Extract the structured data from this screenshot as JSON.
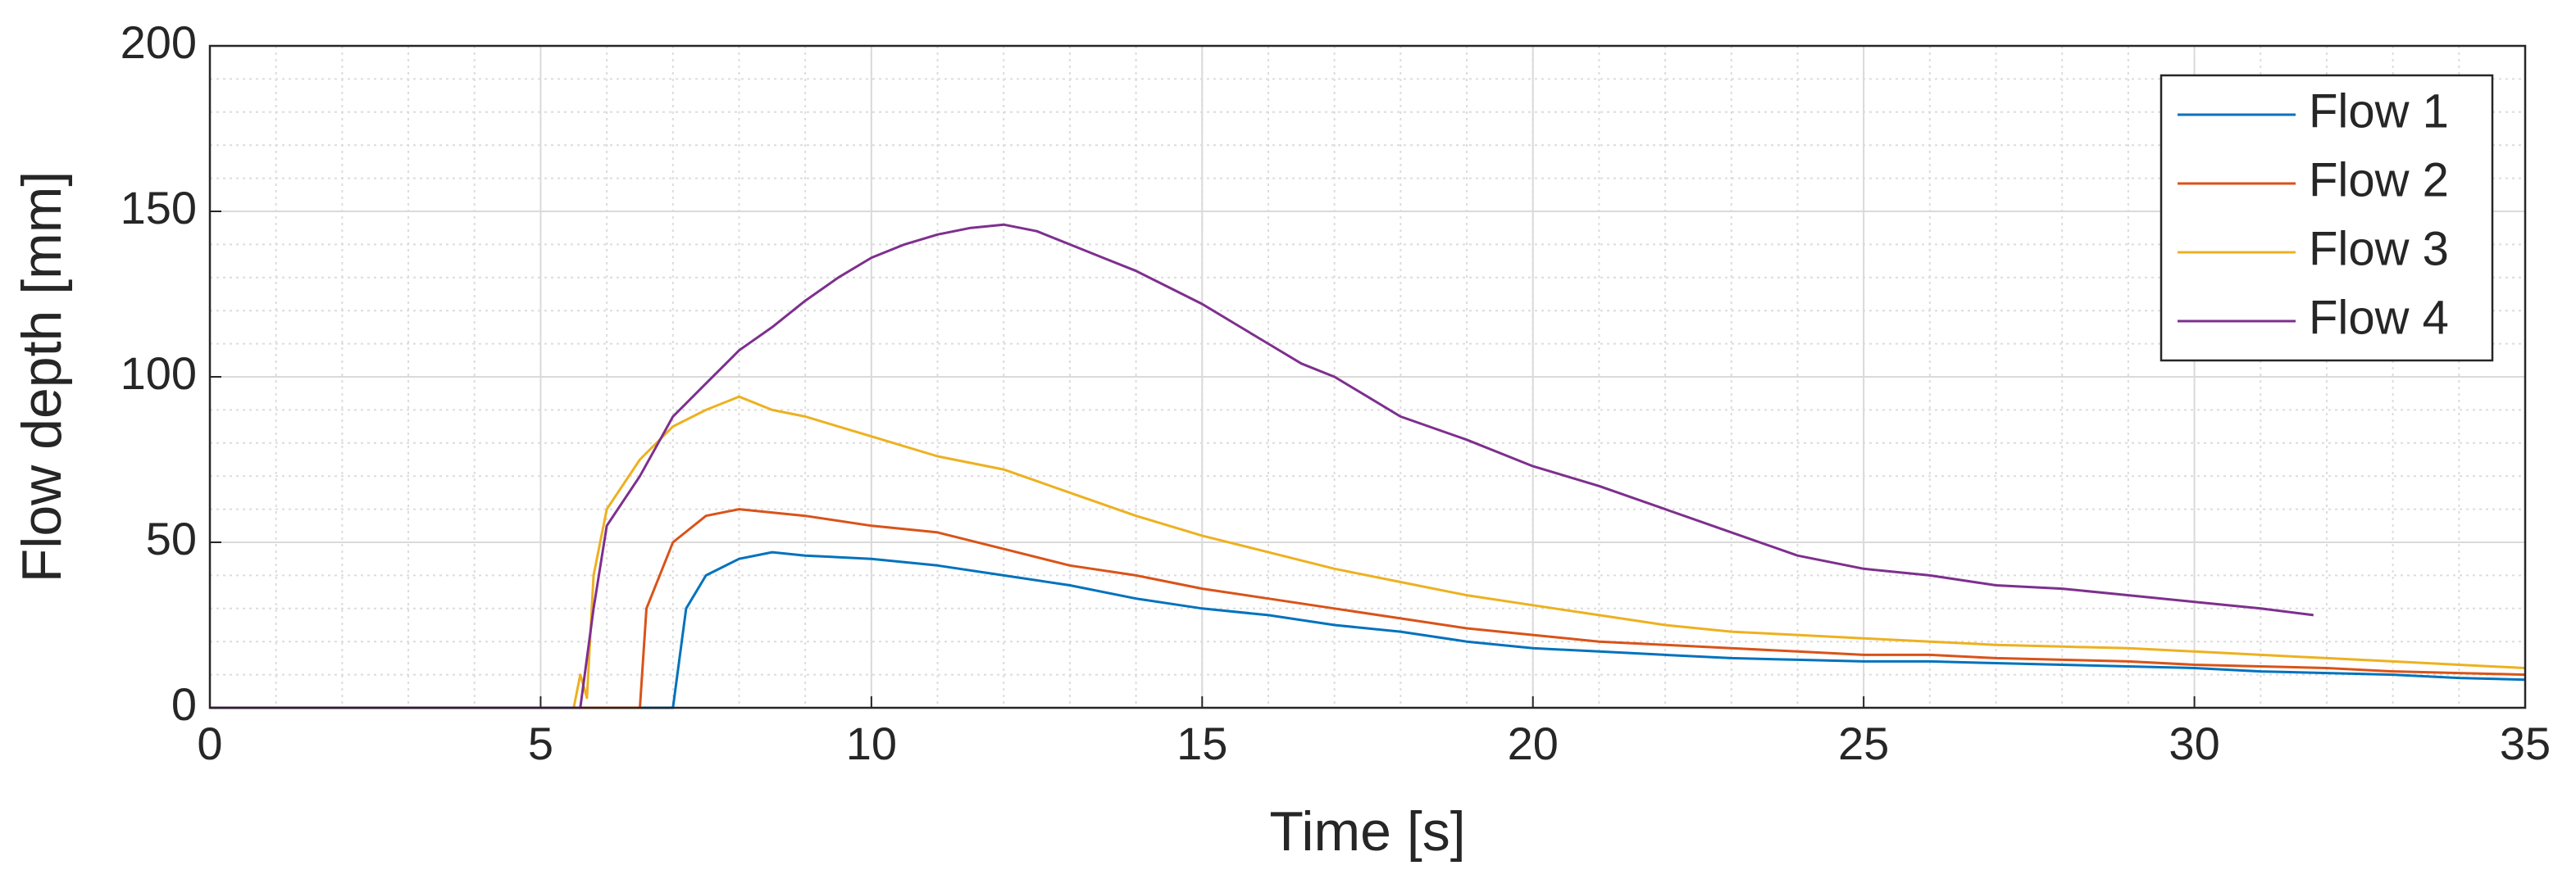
{
  "chart_data": {
    "type": "line",
    "xlabel": "Time [s]",
    "ylabel": "Flow depth [mm]",
    "xlim": [
      0,
      35
    ],
    "ylim": [
      0,
      200
    ],
    "xticks": [
      0,
      5,
      10,
      15,
      20,
      25,
      30,
      35
    ],
    "yticks": [
      0,
      50,
      100,
      150,
      200
    ],
    "grid": true,
    "minor_grid": true,
    "legend": "upper right",
    "series": [
      {
        "name": "Flow 1",
        "color": "#0072bd",
        "x": [
          0,
          7.0,
          7.2,
          7.5,
          8,
          8.5,
          9,
          10,
          11,
          12,
          13,
          14,
          15,
          16,
          17,
          18,
          19,
          20,
          21,
          22,
          23,
          24,
          25,
          26,
          27,
          28,
          29,
          30,
          31,
          32,
          33,
          34,
          35
        ],
        "values": [
          0,
          0,
          30,
          40,
          45,
          47,
          46,
          45,
          43,
          40,
          37,
          33,
          30,
          28,
          25,
          23,
          20,
          18,
          17,
          16,
          15,
          14.5,
          14,
          14,
          13.5,
          13,
          12.5,
          12,
          11,
          10.5,
          10,
          9,
          8.5
        ]
      },
      {
        "name": "Flow 2",
        "color": "#d95319",
        "x": [
          0,
          6.5,
          6.6,
          7,
          7.5,
          8,
          9,
          10,
          11,
          12,
          13,
          14,
          15,
          16,
          17,
          18,
          19,
          20,
          21,
          22,
          23,
          24,
          25,
          26,
          27,
          28,
          29,
          30,
          31,
          32,
          33,
          34,
          35
        ],
        "values": [
          0,
          0,
          30,
          50,
          58,
          60,
          58,
          55,
          53,
          48,
          43,
          40,
          36,
          33,
          30,
          27,
          24,
          22,
          20,
          19,
          18,
          17,
          16,
          16,
          15,
          14.5,
          14,
          13,
          12.5,
          12,
          11,
          10.5,
          10
        ]
      },
      {
        "name": "Flow 3",
        "color": "#edb120",
        "x": [
          0,
          5.5,
          5.6,
          5.7,
          5.8,
          6,
          6.5,
          7,
          7.5,
          8,
          8.5,
          9,
          10,
          11,
          12,
          13,
          14,
          15,
          16,
          17,
          18,
          19,
          20,
          21,
          22,
          23,
          24,
          25,
          26,
          27,
          28,
          29,
          30,
          31,
          32,
          33,
          34,
          35
        ],
        "values": [
          0,
          0,
          10,
          3,
          40,
          60,
          75,
          85,
          90,
          94,
          90,
          88,
          82,
          76,
          72,
          65,
          58,
          52,
          47,
          42,
          38,
          34,
          31,
          28,
          25,
          23,
          22,
          21,
          20,
          19,
          18.5,
          18,
          17,
          16,
          15,
          14,
          13,
          12
        ]
      },
      {
        "name": "Flow 4",
        "color": "#7e2f8e",
        "x": [
          0,
          5.6,
          5.8,
          6,
          6.5,
          7,
          7.5,
          8,
          8.5,
          9,
          9.5,
          10,
          10.5,
          11,
          11.5,
          12,
          12.5,
          13,
          13.5,
          14,
          14.5,
          15,
          15.5,
          16,
          16.5,
          17,
          17.5,
          18,
          19,
          20,
          21,
          22,
          23,
          24,
          25,
          26,
          27,
          28,
          29,
          30,
          31,
          31.8
        ],
        "values": [
          0,
          0,
          30,
          55,
          70,
          88,
          98,
          108,
          115,
          123,
          130,
          136,
          140,
          143,
          145,
          146,
          144,
          140,
          136,
          132,
          127,
          122,
          116,
          110,
          104,
          100,
          94,
          88,
          81,
          73,
          67,
          60,
          53,
          46,
          42,
          40,
          37,
          36,
          34,
          32,
          30,
          28
        ]
      }
    ]
  }
}
